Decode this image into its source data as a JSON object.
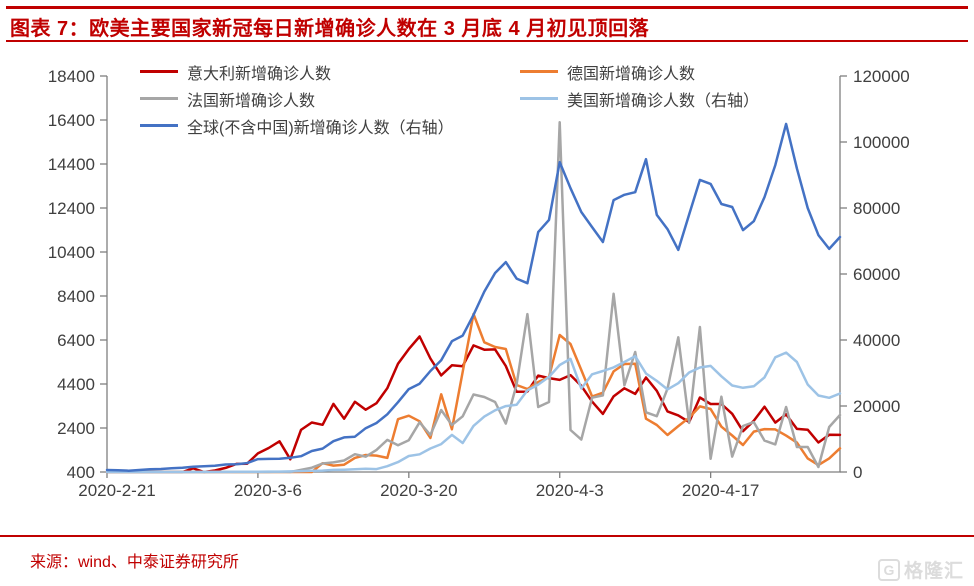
{
  "page": {
    "background": "#ffffff",
    "accent_red": "#c00000"
  },
  "header": {
    "title": "图表 7：欧美主要国家新冠每日新增确诊人数在 3 月底 4 月初见顶回落"
  },
  "footer": {
    "source": "来源：wind、中泰证券研究所",
    "watermark_icon": "G",
    "watermark_text": "格隆汇"
  },
  "chart_data": {
    "type": "line",
    "title": "",
    "x_start_date": "2020-2-21",
    "x_end_date": "2020-4-29",
    "x_tick_labels": [
      "2020-2-21",
      "2020-3-6",
      "2020-3-20",
      "2020-4-3",
      "2020-4-17"
    ],
    "x_tick_positions": [
      0,
      14,
      28,
      42,
      56
    ],
    "days_total": 68,
    "grid": false,
    "legend_position": "top",
    "left_axis": {
      "min": 400,
      "max": 18400,
      "ticks": [
        18400,
        16400,
        14400,
        12400,
        10400,
        8400,
        6400,
        4400,
        2400,
        400
      ]
    },
    "right_axis": {
      "min": 0,
      "max": 120000,
      "ticks": [
        120000,
        100000,
        80000,
        60000,
        40000,
        20000,
        0
      ]
    },
    "series": [
      {
        "id": "italy",
        "name": "意大利新增确诊人数",
        "axis": "left",
        "color": "#c00000",
        "values": [
          20,
          59,
          74,
          93,
          78,
          250,
          238,
          240,
          566,
          342,
          466,
          587,
          769,
          778,
          1247,
          1492,
          1797,
          977,
          2313,
          2651,
          2547,
          3497,
          2823,
          3590,
          3233,
          3526,
          4207,
          5322,
          5986,
          6557,
          5560,
          4789,
          5249,
          5210,
          6153,
          5959,
          5974,
          5217,
          4050,
          4053,
          4782,
          4668,
          4585,
          4805,
          4316,
          3599,
          3039,
          3836,
          4204,
          3951,
          4694,
          4092,
          3153,
          2972,
          2667,
          3786,
          3493,
          3491,
          3047,
          2256,
          2729,
          3370,
          2646,
          3021,
          2357,
          2324,
          1739,
          2091,
          2086
        ]
      },
      {
        "id": "germany",
        "name": "德国新增确诊人数",
        "axis": "left",
        "color": "#ed7d31",
        "values": [
          0,
          0,
          0,
          0,
          1,
          9,
          19,
          27,
          9,
          37,
          88,
          39,
          66,
          138,
          284,
          163,
          55,
          237,
          157,
          271,
          802,
          693,
          733,
          1043,
          1174,
          1144,
          1042,
          2801,
          2958,
          2705,
          1948,
          3930,
          2342,
          4954,
          7582,
          6294,
          6082,
          5991,
          4355,
          4173,
          4491,
          4718,
          6627,
          6218,
          5036,
          3834,
          4003,
          4974,
          5309,
          5323,
          2821,
          2537,
          2082,
          2486,
          2866,
          3380,
          3264,
          2458,
          2061,
          1627,
          2237,
          2352,
          2337,
          2055,
          1737,
          1018,
          718,
          1018,
          1478
        ]
      },
      {
        "id": "france",
        "name": "法国新增确诊人数",
        "axis": "left",
        "color": "#a6a6a6",
        "values": [
          0,
          0,
          0,
          0,
          0,
          3,
          10,
          19,
          30,
          43,
          30,
          48,
          73,
          138,
          190,
          103,
          410,
          286,
          497,
          595,
          785,
          838,
          924,
          1210,
          1097,
          1404,
          1861,
          1617,
          1847,
          2657,
          2082,
          3218,
          2536,
          2931,
          3922,
          3809,
          3582,
          2599,
          4376,
          7578,
          3355,
          3582,
          16300,
          2309,
          1873,
          3777,
          3881,
          8500,
          4342,
          5855,
          3114,
          2937,
          4188,
          6524,
          2633,
          6991,
          1000,
          3824,
          1101,
          2489,
          2667,
          1827,
          1653,
          3355,
          1536,
          1536,
          627,
          2445,
          2991
        ]
      },
      {
        "id": "us",
        "name": "美国新增确诊人数（右轴）",
        "axis": "right",
        "color": "#9dc3e6",
        "values": [
          0,
          0,
          0,
          0,
          0,
          0,
          6,
          5,
          8,
          23,
          20,
          31,
          53,
          75,
          103,
          113,
          136,
          192,
          287,
          351,
          416,
          622,
          702,
          829,
          979,
          887,
          1766,
          2988,
          4835,
          5374,
          7123,
          8459,
          11236,
          8789,
          13963,
          16797,
          18695,
          19979,
          20353,
          24742,
          26473,
          28819,
          32425,
          34272,
          25316,
          29595,
          30613,
          31709,
          33323,
          35098,
          29861,
          27620,
          25023,
          26922,
          30148,
          31667,
          32165,
          29002,
          26212,
          25528,
          25981,
          28674,
          34772,
          36188,
          33348,
          26509,
          23196,
          22500,
          23800
        ]
      },
      {
        "id": "global",
        "name": "全球(不含中国)新增确诊人数（右轴）",
        "axis": "right",
        "color": "#4472c4",
        "values": [
          600,
          520,
          400,
          610,
          860,
          910,
          1130,
          1300,
          1610,
          1720,
          1870,
          2280,
          2340,
          2710,
          3900,
          3980,
          4040,
          4290,
          4800,
          6370,
          7100,
          9330,
          10500,
          10700,
          13260,
          14840,
          17480,
          21160,
          25120,
          26770,
          30610,
          33890,
          39650,
          41320,
          47600,
          54660,
          60300,
          63600,
          58600,
          57200,
          72700,
          76400,
          93900,
          86000,
          78800,
          74200,
          69700,
          82400,
          84000,
          84800,
          94800,
          77900,
          73600,
          67300,
          78000,
          88500,
          87300,
          81200,
          80300,
          73300,
          76000,
          83300,
          93000,
          105500,
          92000,
          80000,
          71800,
          67600,
          71200
        ]
      }
    ]
  }
}
